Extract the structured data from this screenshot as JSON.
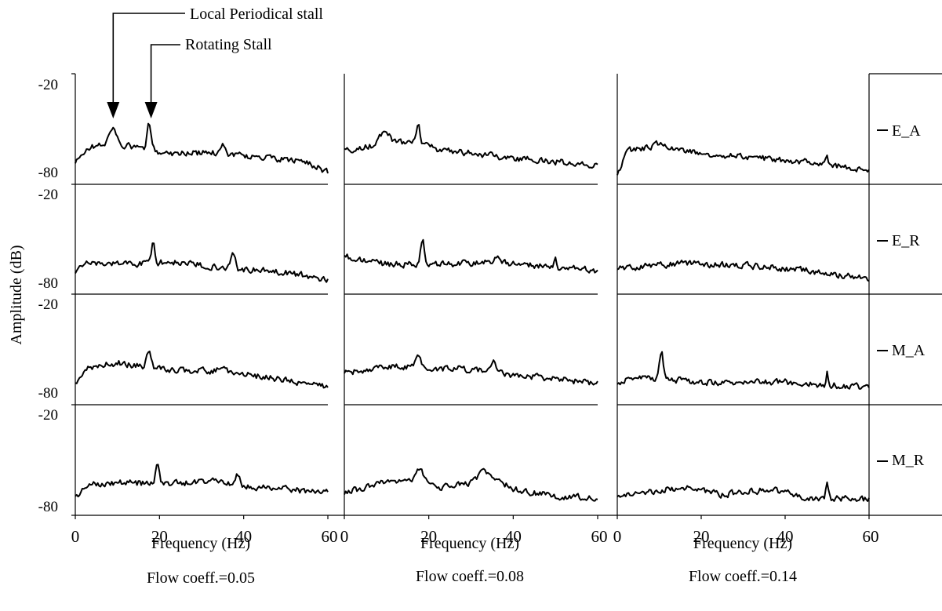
{
  "chart_data": {
    "type": "line",
    "ylabel": "Amplitude (dB)",
    "xlabel": "Frequency (Hz)",
    "xlim": [
      0,
      60
    ],
    "ylim": [
      -80,
      -20
    ],
    "x_ticks": [
      "0",
      "20",
      "40",
      "60"
    ],
    "y_top_label": "-20",
    "y_bottom_label": "-80",
    "panel_titles": [
      "Flow coeff.=0.05",
      "Flow coeff.=0.08",
      "Flow coeff.=0.14"
    ],
    "row_labels": [
      "E_A",
      "E_R",
      "M_A",
      "M_R"
    ],
    "annotations": [
      {
        "text": "Local Periodical stall",
        "x": 9
      },
      {
        "text": "Rotating Stall",
        "x": 18
      }
    ],
    "line_color": "#000000",
    "grid": false,
    "panels": [
      {
        "column": "Flow coeff.=0.05",
        "row": "E_A",
        "base": [
          [
            0,
            -70
          ],
          [
            3,
            -61
          ],
          [
            8,
            -59
          ],
          [
            15,
            -61
          ],
          [
            22,
            -64
          ],
          [
            34,
            -64
          ],
          [
            50,
            -68
          ],
          [
            55,
            -69
          ],
          [
            60,
            -75
          ]
        ],
        "peaks": [
          [
            9,
            -51,
            1.4
          ],
          [
            17.5,
            -48,
            0.6
          ],
          [
            35,
            -59,
            0.8
          ]
        ]
      },
      {
        "column": "Flow coeff.=0.05",
        "row": "E_R",
        "base": [
          [
            0,
            -71
          ],
          [
            2,
            -64
          ],
          [
            15,
            -64
          ],
          [
            22,
            -63
          ],
          [
            38,
            -67
          ],
          [
            50,
            -69
          ],
          [
            60,
            -73
          ]
        ],
        "peaks": [
          [
            18.5,
            -53,
            0.6
          ],
          [
            37.5,
            -57,
            0.7
          ]
        ]
      },
      {
        "column": "Flow coeff.=0.05",
        "row": "M_A",
        "base": [
          [
            0,
            -71
          ],
          [
            3,
            -61
          ],
          [
            10,
            -58
          ],
          [
            22,
            -62
          ],
          [
            35,
            -63
          ],
          [
            45,
            -66
          ],
          [
            60,
            -72
          ]
        ],
        "peaks": [
          [
            17.5,
            -52,
            0.7
          ],
          [
            35,
            -59,
            1.0
          ]
        ]
      },
      {
        "column": "Flow coeff.=0.05",
        "row": "M_R",
        "base": [
          [
            0,
            -72
          ],
          [
            3,
            -64
          ],
          [
            10,
            -63
          ],
          [
            20,
            -64
          ],
          [
            30,
            -63
          ],
          [
            40,
            -65
          ],
          [
            60,
            -69
          ]
        ],
        "peaks": [
          [
            19.5,
            -52,
            0.6
          ],
          [
            33,
            -60,
            1.2
          ],
          [
            38.5,
            -58,
            0.8
          ]
        ]
      },
      {
        "column": "Flow coeff.=0.08",
        "row": "E_A",
        "base": [
          [
            0,
            -63
          ],
          [
            10,
            -58
          ],
          [
            17,
            -58
          ],
          [
            22,
            -62
          ],
          [
            40,
            -67
          ],
          [
            50,
            -69
          ],
          [
            60,
            -71
          ]
        ],
        "peaks": [
          [
            9.5,
            -52,
            1.5
          ],
          [
            17.5,
            -49,
            0.6
          ]
        ]
      },
      {
        "column": "Flow coeff.=0.08",
        "row": "E_R",
        "base": [
          [
            0,
            -60
          ],
          [
            8,
            -64
          ],
          [
            20,
            -65
          ],
          [
            35,
            -63
          ],
          [
            45,
            -65
          ],
          [
            60,
            -68
          ]
        ],
        "peaks": [
          [
            18.5,
            -51,
            0.6
          ],
          [
            36,
            -60,
            0.8
          ],
          [
            50,
            -60,
            0.4
          ]
        ]
      },
      {
        "column": "Flow coeff.=0.08",
        "row": "M_A",
        "base": [
          [
            0,
            -64
          ],
          [
            10,
            -60
          ],
          [
            20,
            -61
          ],
          [
            30,
            -62
          ],
          [
            40,
            -65
          ],
          [
            50,
            -67
          ],
          [
            60,
            -70
          ]
        ],
        "peaks": [
          [
            17.5,
            -52,
            0.7
          ],
          [
            27.5,
            -60,
            0.8
          ],
          [
            35.5,
            -58,
            0.7
          ]
        ]
      },
      {
        "column": "Flow coeff.=0.08",
        "row": "M_R",
        "base": [
          [
            0,
            -69
          ],
          [
            10,
            -63
          ],
          [
            15,
            -62
          ],
          [
            22,
            -66
          ],
          [
            30,
            -64
          ],
          [
            36,
            -61
          ],
          [
            40,
            -67
          ],
          [
            50,
            -71
          ],
          [
            60,
            -72
          ]
        ],
        "peaks": [
          [
            18,
            -55,
            1.2
          ],
          [
            33,
            -57,
            2.0
          ]
        ]
      },
      {
        "column": "Flow coeff.=0.14",
        "row": "E_A",
        "base": [
          [
            0,
            -77
          ],
          [
            2,
            -63
          ],
          [
            10,
            -60
          ],
          [
            20,
            -64
          ],
          [
            35,
            -67
          ],
          [
            50,
            -70
          ],
          [
            60,
            -75
          ]
        ],
        "peaks": [
          [
            10.5,
            -58,
            1.2
          ],
          [
            50,
            -64,
            0.35
          ]
        ]
      },
      {
        "column": "Flow coeff.=0.14",
        "row": "E_R",
        "base": [
          [
            0,
            -67
          ],
          [
            15,
            -64
          ],
          [
            30,
            -65
          ],
          [
            45,
            -68
          ],
          [
            60,
            -73
          ]
        ],
        "peaks": []
      },
      {
        "column": "Flow coeff.=0.14",
        "row": "M_A",
        "base": [
          [
            0,
            -69
          ],
          [
            5,
            -66
          ],
          [
            20,
            -69
          ],
          [
            40,
            -69
          ],
          [
            60,
            -72
          ]
        ],
        "peaks": [
          [
            10.5,
            -52,
            0.6
          ],
          [
            50,
            -63,
            0.35
          ]
        ]
      },
      {
        "column": "Flow coeff.=0.14",
        "row": "M_R",
        "base": [
          [
            0,
            -72
          ],
          [
            5,
            -69
          ],
          [
            15,
            -66
          ],
          [
            25,
            -70
          ],
          [
            37,
            -67
          ],
          [
            45,
            -72
          ],
          [
            60,
            -73
          ]
        ],
        "peaks": [
          [
            50,
            -62,
            0.35
          ]
        ]
      }
    ]
  }
}
